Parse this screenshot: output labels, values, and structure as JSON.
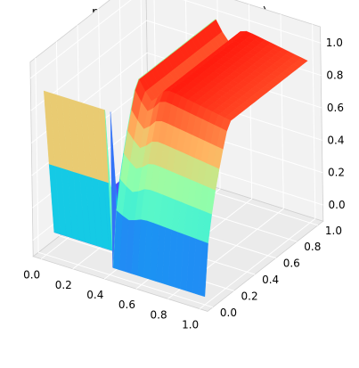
{
  "chart_data": {
    "type": "surface3d",
    "title": "refinement prediction u(x,y)",
    "xlabel": "",
    "ylabel": "",
    "zlabel": "",
    "xlim": [
      0,
      1
    ],
    "ylim": [
      0,
      1
    ],
    "zlim": [
      -0.1,
      1.0
    ],
    "x_ticks": [
      "0.0",
      "0.2",
      "0.4",
      "0.6",
      "0.8",
      "1.0"
    ],
    "y_ticks": [
      "0.0",
      "0.2",
      "0.4",
      "0.6",
      "0.8",
      "1.0"
    ],
    "z_ticks": [
      "0.0",
      "0.2",
      "0.4",
      "0.6",
      "0.8",
      "1.0"
    ],
    "colormap": "rainbow",
    "grid": true,
    "pane_color": "#f2f2f2",
    "surface_description": {
      "low_plateau": {
        "x": [
          0.0,
          0.4
        ],
        "y": [
          0.0,
          1.0
        ],
        "value": 0.0
      },
      "front_rising_edge": {
        "y": [
          0.0,
          0.05
        ],
        "value_range": [
          0.3,
          0.98
        ]
      },
      "sharp_rise_ridge": {
        "x": 0.42,
        "peak_value": 1.0
      },
      "right_region": {
        "x": [
          0.42,
          1.0
        ],
        "value_near_ridge": 1.0,
        "value_far": 0.9,
        "dip_at_y0": -0.05
      }
    }
  }
}
